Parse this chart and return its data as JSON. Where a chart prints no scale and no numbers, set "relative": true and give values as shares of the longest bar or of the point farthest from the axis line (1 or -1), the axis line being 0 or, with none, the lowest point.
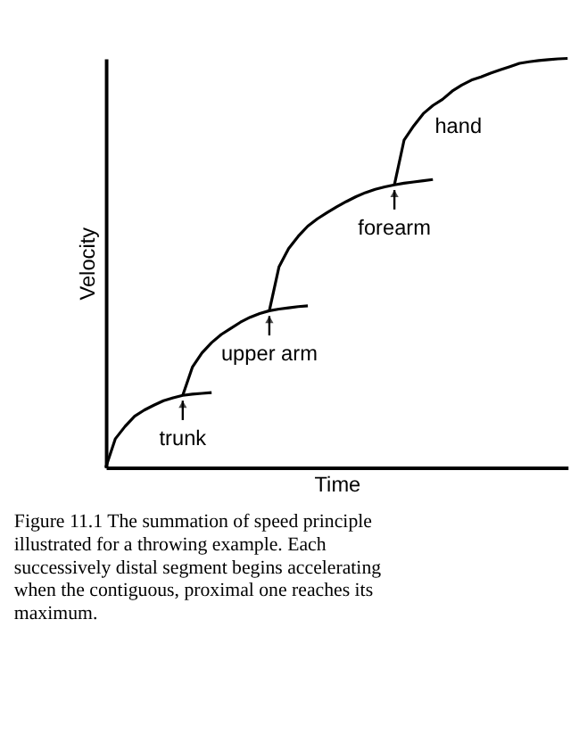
{
  "chart_data": {
    "type": "line",
    "relative": true,
    "xlabel": "Time",
    "ylabel": "Velocity",
    "grid": false,
    "categories": [
      null,
      null,
      null,
      null,
      null,
      null,
      null,
      null,
      null,
      null,
      null,
      null,
      null,
      null,
      null,
      null,
      null,
      null,
      null,
      null,
      null,
      null,
      null,
      null,
      null,
      null,
      null,
      null,
      null,
      null,
      null,
      null,
      null,
      null,
      null,
      null,
      null,
      null,
      null,
      null,
      null,
      null,
      null,
      null,
      null,
      null,
      null,
      null,
      null
    ],
    "series": [
      {
        "color": "#000000",
        "values": [
          0,
          0.07,
          0.1,
          0.125,
          0.14,
          0.152,
          0.163,
          0.17,
          0.176,
          0.179,
          0.181,
          0.183,
          null,
          null,
          null,
          null,
          null,
          null,
          null,
          null,
          null,
          null,
          null,
          null,
          null,
          null,
          null,
          null,
          null,
          null,
          null,
          null,
          null,
          null,
          null,
          null,
          null,
          null,
          null,
          null,
          null,
          null,
          null,
          null,
          null,
          null,
          null,
          null,
          null
        ]
      },
      {
        "color": "#000000",
        "values": [
          null,
          null,
          null,
          null,
          null,
          null,
          null,
          null,
          0.176,
          0.245,
          0.28,
          0.305,
          0.325,
          0.34,
          0.355,
          0.367,
          0.376,
          0.383,
          0.387,
          0.39,
          0.393,
          0.395,
          null,
          null,
          null,
          null,
          null,
          null,
          null,
          null,
          null,
          null,
          null,
          null,
          null,
          null,
          null,
          null,
          null,
          null,
          null,
          null,
          null,
          null,
          null,
          null,
          null,
          null,
          null
        ]
      },
      {
        "color": "#000000",
        "values": [
          null,
          null,
          null,
          null,
          null,
          null,
          null,
          null,
          null,
          null,
          null,
          null,
          null,
          null,
          null,
          null,
          null,
          0.383,
          0.49,
          0.535,
          0.565,
          0.59,
          0.608,
          0.623,
          0.637,
          0.65,
          0.662,
          0.672,
          0.68,
          0.686,
          0.691,
          0.695,
          0.698,
          0.701,
          0.704,
          null,
          null,
          null,
          null,
          null,
          null,
          null,
          null,
          null,
          null,
          null,
          null,
          null,
          null
        ]
      },
      {
        "color": "#000000",
        "values": [
          null,
          null,
          null,
          null,
          null,
          null,
          null,
          null,
          null,
          null,
          null,
          null,
          null,
          null,
          null,
          null,
          null,
          null,
          null,
          null,
          null,
          null,
          null,
          null,
          null,
          null,
          null,
          null,
          null,
          null,
          0.691,
          0.8,
          0.835,
          0.865,
          0.885,
          0.9,
          0.92,
          0.935,
          0.947,
          0.955,
          0.964,
          0.972,
          0.98,
          0.988,
          0.992,
          0.995,
          0.997,
          0.999,
          1.0
        ]
      }
    ],
    "annotations": [
      {
        "text": "trunk",
        "y": 0.176
      },
      {
        "text": "upper arm",
        "y": 0.383
      },
      {
        "text": "forearm",
        "y": 0.691
      },
      "hand",
      "Figure 11.1 The summation of speed principle illustrated for a throwing example. Each successively distal segment begins accelerating when the contiguous, proximal one reaches its maximum."
    ]
  }
}
